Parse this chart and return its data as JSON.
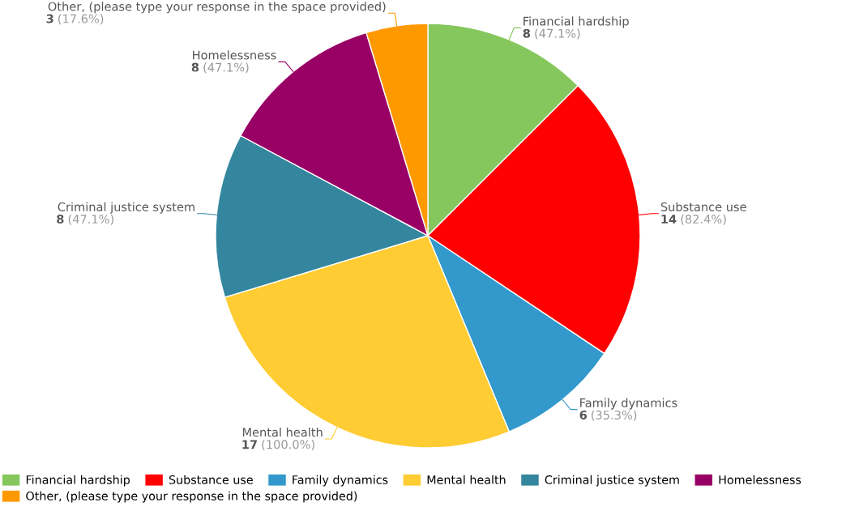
{
  "chart_data": {
    "type": "pie",
    "categories": [
      "Financial hardship",
      "Substance use",
      "Family dynamics",
      "Mental health",
      "Criminal justice system",
      "Homelessness",
      "Other, (please type your response in the space provided)"
    ],
    "values": [
      8,
      14,
      6,
      17,
      8,
      8,
      3
    ],
    "value_labels": [
      "8 (47.1%)",
      "14 (82.4%)",
      "6 (35.3%)",
      "17 (100.0%)",
      "8 (47.1%)",
      "8 (47.1%)",
      "3 (17.6%)"
    ],
    "colors": [
      "#85c75c",
      "#ff0000",
      "#3399cc",
      "#ffcc33",
      "#33869e",
      "#990066",
      "#ff9900"
    ],
    "legend": "bottom"
  }
}
